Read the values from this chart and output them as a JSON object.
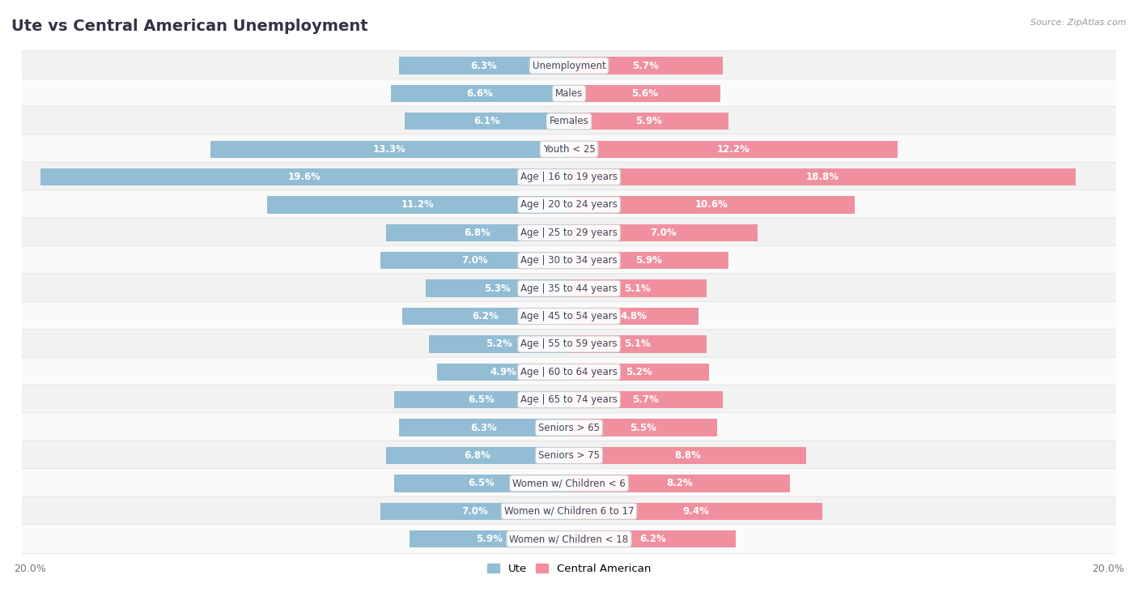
{
  "title": "Ute vs Central American Unemployment",
  "source": "Source: ZipAtlas.com",
  "categories": [
    "Unemployment",
    "Males",
    "Females",
    "Youth < 25",
    "Age | 16 to 19 years",
    "Age | 20 to 24 years",
    "Age | 25 to 29 years",
    "Age | 30 to 34 years",
    "Age | 35 to 44 years",
    "Age | 45 to 54 years",
    "Age | 55 to 59 years",
    "Age | 60 to 64 years",
    "Age | 65 to 74 years",
    "Seniors > 65",
    "Seniors > 75",
    "Women w/ Children < 6",
    "Women w/ Children 6 to 17",
    "Women w/ Children < 18"
  ],
  "ute_values": [
    6.3,
    6.6,
    6.1,
    13.3,
    19.6,
    11.2,
    6.8,
    7.0,
    5.3,
    6.2,
    5.2,
    4.9,
    6.5,
    6.3,
    6.8,
    6.5,
    7.0,
    5.9
  ],
  "central_american_values": [
    5.7,
    5.6,
    5.9,
    12.2,
    18.8,
    10.6,
    7.0,
    5.9,
    5.1,
    4.8,
    5.1,
    5.2,
    5.7,
    5.5,
    8.8,
    8.2,
    9.4,
    6.2
  ],
  "ute_color": "#92BDD4",
  "central_american_color": "#F0909F",
  "ute_label": "Ute",
  "central_american_label": "Central American",
  "xlim": 20.0,
  "bg_color": "#ffffff",
  "row_color_odd": "#f2f2f2",
  "row_color_even": "#fafafa",
  "title_fontsize": 14,
  "label_fontsize": 8.5,
  "value_fontsize": 8.5,
  "bar_height": 0.62,
  "title_color": "#333344",
  "source_color": "#999999",
  "value_color_inside": "#ffffff",
  "value_color_outside": "#555555"
}
